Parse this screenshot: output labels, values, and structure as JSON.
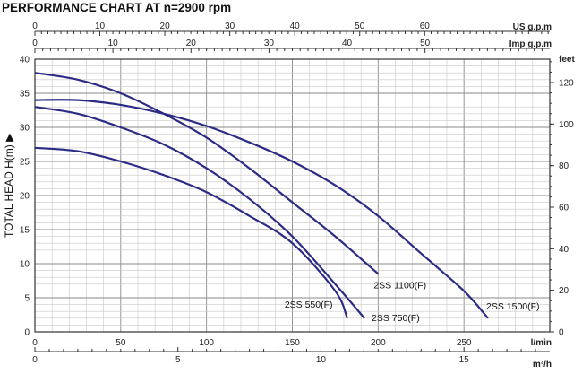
{
  "chart_data": {
    "type": "line",
    "title": "PERFORMANCE CHART AT n=2900 rpm",
    "ylabel": "TOTAL HEAD H(m) ▶",
    "xlabel": "",
    "x_unit": "l/min",
    "xlim": [
      0,
      300
    ],
    "ylim": [
      0,
      40
    ],
    "x_ticks": [
      0,
      50,
      100,
      150,
      200,
      250
    ],
    "y_ticks": [
      0,
      5,
      10,
      15,
      20,
      25,
      30,
      35,
      40
    ],
    "grid": true,
    "secondary_axes": {
      "us_gpm": {
        "unit": "US g.p.m",
        "ticks": [
          0,
          10,
          20,
          30,
          40,
          50,
          60
        ],
        "lpm_per_unit": 3.785
      },
      "imp_gpm": {
        "unit": "Imp g.p.m",
        "ticks": [
          0,
          10,
          20,
          30,
          40,
          50
        ],
        "lpm_per_unit": 4.546
      },
      "m3h": {
        "unit": "m³/h",
        "ticks": [
          0,
          5,
          10,
          15
        ],
        "lpm_per_unit": 16.667
      },
      "feet": {
        "unit": "feet",
        "ticks": [
          0,
          20,
          40,
          60,
          80,
          100,
          120
        ],
        "m_per_unit": 0.3048
      }
    },
    "series": [
      {
        "name": "2SS 550(F)",
        "x": [
          0,
          25,
          50,
          75,
          100,
          125,
          150,
          175,
          182
        ],
        "y": [
          27,
          26.5,
          25,
          23,
          20.5,
          17,
          13,
          6,
          2
        ]
      },
      {
        "name": "2SS 750(F)",
        "x": [
          0,
          25,
          50,
          75,
          100,
          125,
          150,
          175,
          192
        ],
        "y": [
          33,
          32,
          30,
          27.5,
          24,
          19.5,
          14,
          7,
          2
        ]
      },
      {
        "name": "2SS 1100(F)",
        "x": [
          0,
          25,
          50,
          75,
          100,
          125,
          150,
          175,
          200
        ],
        "y": [
          38,
          37,
          35,
          32,
          28.5,
          24,
          19,
          14,
          8.5
        ]
      },
      {
        "name": "2SS 1500(F)",
        "x": [
          0,
          25,
          50,
          75,
          100,
          125,
          150,
          175,
          200,
          225,
          250,
          264
        ],
        "y": [
          34,
          34,
          33.3,
          32,
          30.2,
          27.8,
          25,
          21.5,
          17,
          11.5,
          6,
          2
        ]
      }
    ]
  }
}
